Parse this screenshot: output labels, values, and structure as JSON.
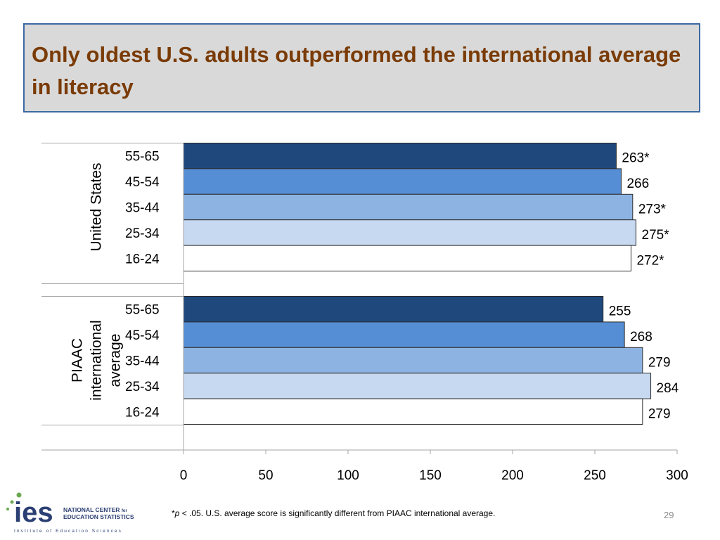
{
  "slide": {
    "title": "Only oldest U.S. adults outperformed the international average in literacy",
    "footnote_mark": "*",
    "footnote_p": "p",
    "footnote_rest": " < .05. U.S. average score is significantly different from PIAAC international average.",
    "page_number": "29"
  },
  "logo": {
    "mark": "ies",
    "line1": "NATIONAL CENTER",
    "line1_small": "for",
    "line2": "EDUCATION STATISTICS",
    "tagline": "Institute of Education Sciences"
  },
  "colors": {
    "55-65": "#1f497d",
    "45-54": "#558ed5",
    "35-44": "#8db3e2",
    "25-34": "#c6d9f1",
    "16-24": "#ffffff",
    "bar_stroke": "#2a2a2a",
    "title_text": "#7a3b06",
    "title_bg": "#d9d9d9",
    "title_border": "#3a6aa3"
  },
  "chart_data": {
    "type": "bar",
    "orientation": "horizontal",
    "title": "",
    "xlabel": "",
    "ylabel": "",
    "xlim": [
      0,
      300
    ],
    "x_ticks": [
      "0",
      "50",
      "100",
      "150",
      "200",
      "250",
      "300"
    ],
    "grid": false,
    "legend": "none",
    "groups": [
      {
        "name": "United States",
        "bars": [
          {
            "category": "55-65",
            "value": 263,
            "label": "263*"
          },
          {
            "category": "45-54",
            "value": 266,
            "label": "266"
          },
          {
            "category": "35-44",
            "value": 273,
            "label": "273*"
          },
          {
            "category": "25-34",
            "value": 275,
            "label": "275*"
          },
          {
            "category": "16-24",
            "value": 272,
            "label": "272*"
          }
        ]
      },
      {
        "name": "PIAAC international average",
        "name_lines": [
          "PIAAC",
          "international",
          "average"
        ],
        "bars": [
          {
            "category": "55-65",
            "value": 255,
            "label": "255"
          },
          {
            "category": "45-54",
            "value": 268,
            "label": "268"
          },
          {
            "category": "35-44",
            "value": 279,
            "label": "279"
          },
          {
            "category": "25-34",
            "value": 284,
            "label": "284"
          },
          {
            "category": "16-24",
            "value": 279,
            "label": "279"
          }
        ]
      }
    ]
  }
}
